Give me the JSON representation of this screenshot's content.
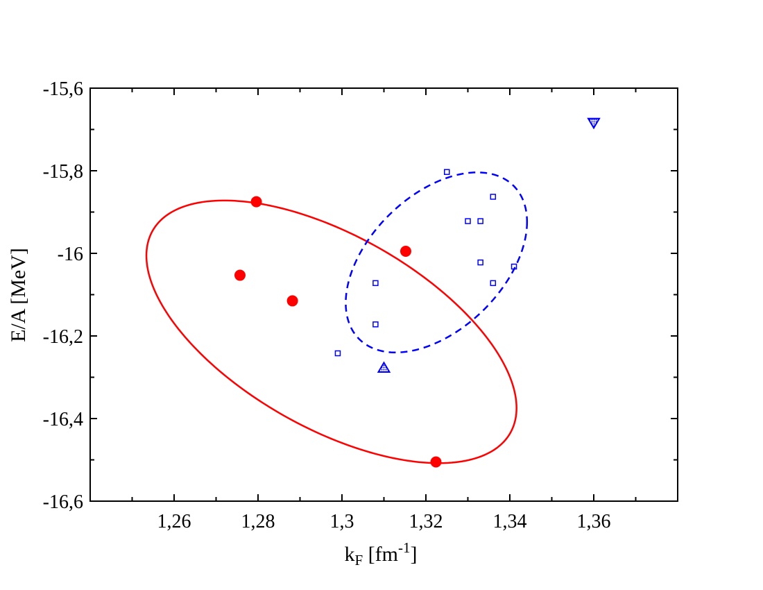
{
  "chart_data": {
    "type": "scatter",
    "title": "",
    "xlabel": {
      "main": "k",
      "sub": "F",
      "unit": " [fm",
      "sup": "-1",
      "close": "]"
    },
    "ylabel": "E/A [MeV]",
    "xlim": [
      1.24,
      1.38
    ],
    "ylim": [
      -16.6,
      -15.6
    ],
    "x_ticks": [
      1.26,
      1.28,
      1.3,
      1.32,
      1.34,
      1.36
    ],
    "x_tick_labels": [
      "1,26",
      "1,28",
      "1,3",
      "1,32",
      "1,34",
      "1,36"
    ],
    "y_ticks": [
      -15.6,
      -15.8,
      -16.0,
      -16.2,
      -16.4,
      -16.6
    ],
    "y_tick_labels": [
      "-15,6",
      "-15,8",
      "-16",
      "-16,2",
      "-16,4",
      "-16,6"
    ],
    "grid": false,
    "colors": {
      "red": "#ff0000",
      "blue": "#0000ff",
      "axis": "#000000"
    },
    "series": [
      {
        "name": "red-filled-circles",
        "marker": "filled-circle",
        "color": "#ff0000",
        "points": [
          {
            "x": 1.2796,
            "y": -15.875
          },
          {
            "x": 1.2757,
            "y": -16.053
          },
          {
            "x": 1.2882,
            "y": -16.115
          },
          {
            "x": 1.3152,
            "y": -15.995
          },
          {
            "x": 1.3224,
            "y": -16.505
          }
        ]
      },
      {
        "name": "blue-open-squares",
        "marker": "open-square",
        "color": "#0000ff",
        "points": [
          {
            "x": 1.325,
            "y": -15.803
          },
          {
            "x": 1.336,
            "y": -15.863
          },
          {
            "x": 1.33,
            "y": -15.922
          },
          {
            "x": 1.333,
            "y": -15.922
          },
          {
            "x": 1.333,
            "y": -16.022
          },
          {
            "x": 1.341,
            "y": -16.032
          },
          {
            "x": 1.336,
            "y": -16.072
          },
          {
            "x": 1.308,
            "y": -16.072
          },
          {
            "x": 1.308,
            "y": -16.172
          },
          {
            "x": 1.299,
            "y": -16.242
          }
        ]
      },
      {
        "name": "blue-triangle-up",
        "marker": "hatched-triangle-up",
        "color": "#0000ff",
        "points": [
          {
            "x": 1.31,
            "y": -16.278
          }
        ]
      },
      {
        "name": "blue-triangle-down",
        "marker": "hatched-triangle-down",
        "color": "#0000ff",
        "points": [
          {
            "x": 1.36,
            "y": -15.683
          }
        ]
      }
    ],
    "ellipses": [
      {
        "name": "red-solid-ellipse",
        "style": "solid",
        "color": "#ff0000",
        "center": {
          "x": 1.2975,
          "y": -16.19
        },
        "semi_axes": {
          "x": 0.0441,
          "y": 0.318
        },
        "correlation": -0.58
      },
      {
        "name": "blue-dashed-ellipse",
        "style": "dashed",
        "color": "#0000ff",
        "center": {
          "x": 1.3225,
          "y": -16.022
        },
        "semi_axes": {
          "x": 0.0216,
          "y": 0.218
        },
        "correlation": 0.45
      }
    ]
  }
}
